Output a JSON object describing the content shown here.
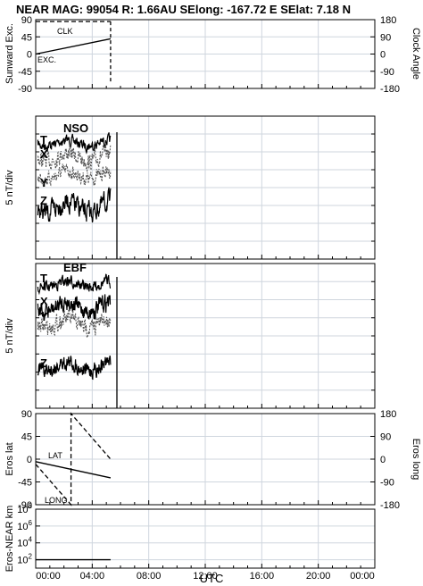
{
  "title": "NEAR MAG: 99054  R: 1.66AU  SElong: -167.72 E  SElat:    7.18 N",
  "xaxis": {
    "label": "UTC",
    "ticks": [
      "00:00",
      "04:00",
      "08:00",
      "12:00",
      "16:00",
      "20:00",
      "00:00"
    ]
  },
  "chart_data": [
    {
      "type": "line",
      "ylabel": "Sunward Exc.",
      "ylabel_right": "Clock Angle",
      "ylim": [
        -90,
        90
      ],
      "ylim_right": [
        -180,
        180
      ],
      "yticks": [
        "90",
        "45",
        "0",
        "-45",
        "-90"
      ],
      "yticks_right": [
        "180",
        "90",
        "0",
        "-90",
        "-180"
      ],
      "series": [
        {
          "name": "CLK",
          "style": "dashed",
          "x": [
            0,
            5.3
          ],
          "y": [
            170,
            170
          ]
        },
        {
          "name": "EXC.",
          "style": "solid",
          "x": [
            0,
            5.3
          ],
          "y": [
            0,
            40
          ]
        }
      ]
    },
    {
      "type": "line",
      "panel_label": "NSO",
      "ylabel": "5 nT/div",
      "traces": [
        "T",
        "X",
        "Y",
        "Z"
      ],
      "x_end_hours": 5.3
    },
    {
      "type": "line",
      "panel_label": "EBF",
      "ylabel": "5 nT/div",
      "traces": [
        "T",
        "X",
        "Y",
        "Z"
      ],
      "x_end_hours": 5.3
    },
    {
      "type": "line",
      "ylabel": "Eros lat",
      "ylabel_right": "Eros long",
      "ylim": [
        -90,
        90
      ],
      "ylim_right": [
        -180,
        180
      ],
      "yticks": [
        "90",
        "45",
        "0",
        "-45",
        "-90"
      ],
      "yticks_right": [
        "180",
        "90",
        "0",
        "-90",
        "-180"
      ],
      "series": [
        {
          "name": "LAT",
          "style": "solid",
          "x": [
            0,
            5.3
          ],
          "y": [
            -5,
            -37
          ]
        },
        {
          "name": "LONG",
          "style": "dashed",
          "x": [
            0,
            2.5,
            2.5,
            5.3
          ],
          "y": [
            -20,
            -180,
            180,
            0
          ]
        }
      ]
    },
    {
      "type": "line",
      "ylabel": "Eros-NEAR km",
      "yscale": "log",
      "ylim": [
        10,
        100000000
      ],
      "yticks": [
        "10^8",
        "10^6",
        "10^4",
        "10^2"
      ],
      "series": [
        {
          "name": "range",
          "style": "solid",
          "x": [
            0,
            5.3
          ],
          "y": [
            100,
            100
          ]
        }
      ]
    }
  ]
}
